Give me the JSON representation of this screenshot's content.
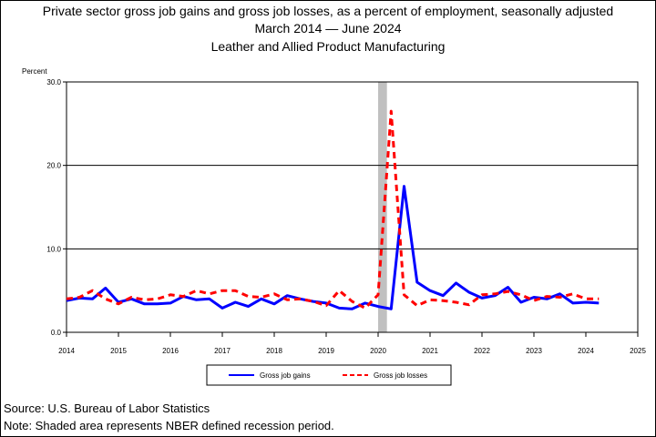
{
  "header": {
    "title": "Private sector gross job gains and gross job losses, as a percent of employment, seasonally adjusted",
    "subtitle": "March 2014 — June 2024",
    "industry": "Leather and Allied Product Manufacturing"
  },
  "footer": {
    "source": "Source: U.S. Bureau of Labor Statistics",
    "note": "Note: Shaded area represents NBER defined recession period."
  },
  "chart_data": {
    "type": "line",
    "ylabel": "Percent",
    "xlabel": "",
    "xlim": [
      2014,
      2025
    ],
    "ylim": [
      0,
      30
    ],
    "x_ticks": [
      "2014",
      "2015",
      "2016",
      "2017",
      "2018",
      "2019",
      "2020",
      "2021",
      "2022",
      "2023",
      "2024",
      "2025"
    ],
    "y_ticks": [
      "0.0",
      "10.0",
      "20.0",
      "30.0"
    ],
    "grid": "horizontal",
    "legend_position": "bottom",
    "recession": {
      "start": 2020.0,
      "end": 2020.17
    },
    "x": [
      2014.0,
      2014.25,
      2014.5,
      2014.75,
      2015.0,
      2015.25,
      2015.5,
      2015.75,
      2016.0,
      2016.25,
      2016.5,
      2016.75,
      2017.0,
      2017.25,
      2017.5,
      2017.75,
      2018.0,
      2018.25,
      2018.5,
      2018.75,
      2019.0,
      2019.25,
      2019.5,
      2019.75,
      2020.0,
      2020.25,
      2020.5,
      2020.75,
      2021.0,
      2021.25,
      2021.5,
      2021.75,
      2022.0,
      2022.25,
      2022.5,
      2022.75,
      2023.0,
      2023.25,
      2023.5,
      2023.75,
      2024.0,
      2024.25
    ],
    "series": [
      {
        "name": "Gross job gains",
        "color": "#0000ff",
        "style": "solid",
        "values": [
          3.8,
          4.1,
          4.0,
          5.3,
          3.6,
          4.0,
          3.4,
          3.4,
          3.5,
          4.3,
          3.9,
          4.0,
          2.9,
          3.6,
          3.1,
          4.0,
          3.4,
          4.4,
          4.0,
          3.7,
          3.5,
          2.9,
          2.8,
          3.5,
          3.1,
          2.8,
          17.5,
          6.0,
          5.0,
          4.4,
          5.9,
          4.8,
          4.1,
          4.4,
          5.4,
          3.6,
          4.2,
          4.0,
          4.6,
          3.5,
          3.6,
          3.5
        ]
      },
      {
        "name": "Gross job losses",
        "color": "#ff0000",
        "style": "dashed",
        "values": [
          4.0,
          4.2,
          5.0,
          4.0,
          3.4,
          4.2,
          3.9,
          4.0,
          4.5,
          4.3,
          5.0,
          4.6,
          5.0,
          5.0,
          4.3,
          4.2,
          4.6,
          3.9,
          4.0,
          3.7,
          3.2,
          5.0,
          3.7,
          2.9,
          4.5,
          26.5,
          4.5,
          3.2,
          3.9,
          3.8,
          3.6,
          3.3,
          4.5,
          4.6,
          4.9,
          4.5,
          3.8,
          4.3,
          4.2,
          4.6,
          4.0,
          4.0
        ]
      }
    ]
  }
}
